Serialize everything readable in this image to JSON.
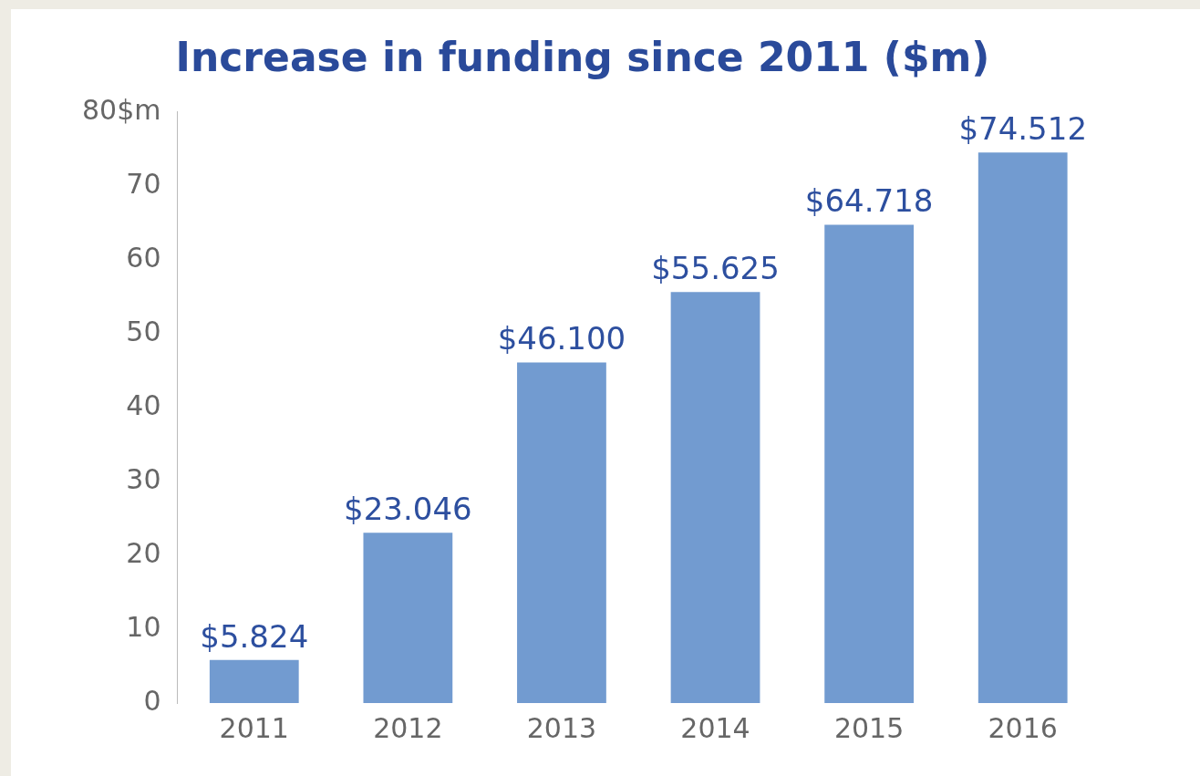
{
  "chart_data": {
    "type": "bar",
    "title": "Increase in funding since 2011 ($m)",
    "categories": [
      "2011",
      "2012",
      "2013",
      "2014",
      "2015",
      "2016"
    ],
    "values": [
      5.824,
      23.046,
      46.1,
      55.625,
      64.718,
      74.512
    ],
    "value_labels": [
      "$5.824",
      "$23.046",
      "$46.100",
      "$55.625",
      "$64.718",
      "$74.512"
    ],
    "color": "#729bd0",
    "ylim": [
      0,
      80
    ],
    "yticks": [
      0,
      10,
      20,
      30,
      40,
      50,
      60,
      70,
      {
        "value": 80,
        "label": "80$m"
      }
    ],
    "grid": false,
    "legend": false
  }
}
